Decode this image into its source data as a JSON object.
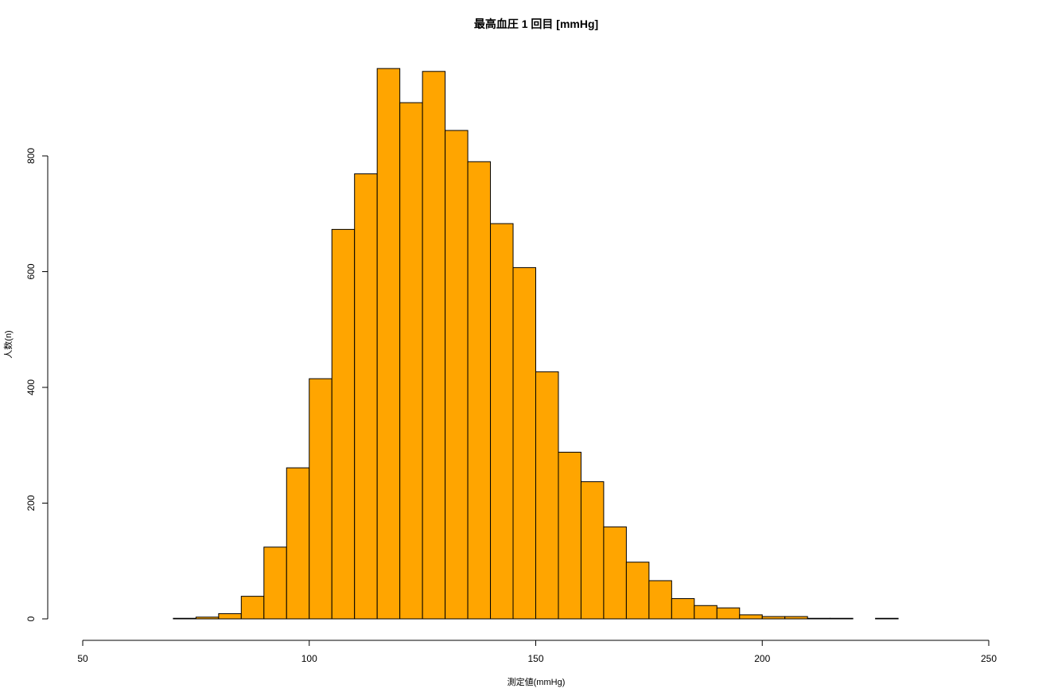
{
  "chart_data": {
    "type": "bar",
    "title": "最高血圧 1 回目 [mmHg]",
    "xlabel": "測定値(mmHg)",
    "ylabel": "人数(n)",
    "xlim": [
      50,
      250
    ],
    "ylim": [
      0,
      950
    ],
    "x_ticks": [
      50,
      100,
      150,
      200,
      250
    ],
    "y_ticks": [
      0,
      200,
      400,
      600,
      800
    ],
    "grid": false,
    "legend": "none",
    "bar_color": "#FFA500",
    "bin_width": 5,
    "bin_starts": [
      70,
      75,
      80,
      85,
      90,
      95,
      100,
      105,
      110,
      115,
      120,
      125,
      130,
      135,
      140,
      145,
      150,
      155,
      160,
      165,
      170,
      175,
      180,
      185,
      190,
      195,
      200,
      205,
      210,
      215,
      220,
      225
    ],
    "values": [
      1,
      3,
      9,
      39,
      124,
      261,
      415,
      673,
      769,
      951,
      892,
      946,
      844,
      790,
      683,
      607,
      427,
      288,
      237,
      159,
      98,
      66,
      35,
      23,
      19,
      7,
      4,
      4,
      1,
      1,
      0,
      1
    ]
  }
}
